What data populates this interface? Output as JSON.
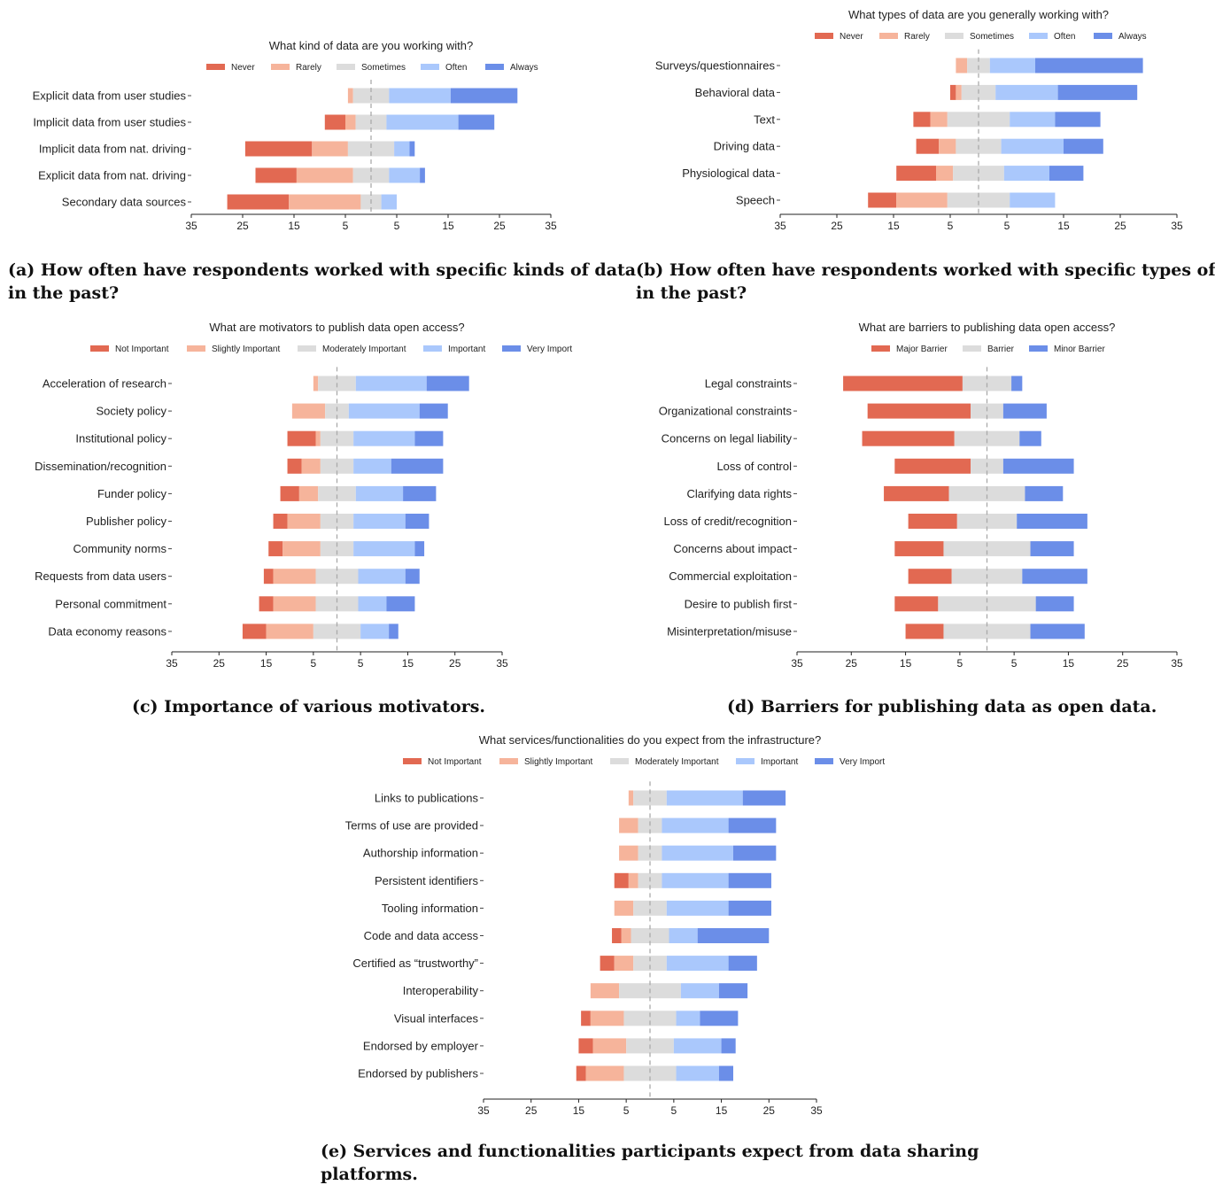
{
  "chart_data": [
    {
      "type": "bar",
      "title": "What kind of data are you working with?",
      "caption": [
        "(a) How often have respondents worked with specific kinds of data",
        "in the past?"
      ],
      "legend": [
        "Never",
        "Rarely",
        "Sometimes",
        "Often",
        "Always"
      ],
      "colors": [
        "#e26952",
        "#f6b49b",
        "#dcdcdc",
        "#aac8fc",
        "#6b8ee8"
      ],
      "categories": [
        "Explicit data from user studies",
        "Implicit data from user studies",
        "Implicit data from nat. driving",
        "Explicit data from nat. driving",
        "Secondary data sources"
      ],
      "series": [
        {
          "name": "Never",
          "values": [
            0,
            4,
            13,
            8,
            12
          ]
        },
        {
          "name": "Rarely",
          "values": [
            1,
            2,
            7,
            11,
            14
          ]
        },
        {
          "name": "Sometimes",
          "values": [
            7,
            6,
            9,
            7,
            4
          ]
        },
        {
          "name": "Often",
          "values": [
            12,
            14,
            3,
            6,
            3
          ]
        },
        {
          "name": "Always",
          "values": [
            13,
            7,
            1,
            1,
            0
          ]
        }
      ],
      "xticks": [
        "35",
        "25",
        "15",
        "5",
        "5",
        "15",
        "25",
        "35"
      ],
      "xlim": [
        -35,
        35
      ]
    },
    {
      "type": "bar",
      "title": "What types of data are you generally working with?",
      "caption": [
        "(b) How often have respondents worked with specific types of data",
        "in the past?"
      ],
      "legend": [
        "Never",
        "Rarely",
        "Sometimes",
        "Often",
        "Always"
      ],
      "colors": [
        "#e26952",
        "#f6b49b",
        "#dcdcdc",
        "#aac8fc",
        "#6b8ee8"
      ],
      "categories": [
        "Surveys/questionnaires",
        "Behavioral data",
        "Text",
        "Driving data",
        "Physiological data",
        "Speech"
      ],
      "series": [
        {
          "name": "Never",
          "values": [
            0,
            1,
            3,
            4,
            7,
            5
          ]
        },
        {
          "name": "Rarely",
          "values": [
            2,
            1,
            3,
            3,
            3,
            9
          ]
        },
        {
          "name": "Sometimes",
          "values": [
            4,
            6,
            11,
            8,
            9,
            11
          ]
        },
        {
          "name": "Often",
          "values": [
            8,
            11,
            8,
            11,
            8,
            8
          ]
        },
        {
          "name": "Always",
          "values": [
            19,
            14,
            8,
            7,
            6,
            0
          ]
        }
      ],
      "xticks": [
        "35",
        "25",
        "15",
        "5",
        "5",
        "15",
        "25",
        "35"
      ],
      "xlim": [
        -35,
        35
      ]
    },
    {
      "type": "bar",
      "title": "What are motivators to publish data open access?",
      "caption": [
        "(c) Importance of various motivators."
      ],
      "legend": [
        "Not Important",
        "Slightly Important",
        "Moderately Important",
        "Important",
        "Very Import"
      ],
      "colors": [
        "#e26952",
        "#f6b49b",
        "#dcdcdc",
        "#aac8fc",
        "#6b8ee8"
      ],
      "categories": [
        "Acceleration of research",
        "Society policy",
        "Institutional policy",
        "Dissemination/recognition",
        "Funder policy",
        "Publisher policy",
        "Community norms",
        "Requests from data users",
        "Personal commitment",
        "Data economy reasons"
      ],
      "series": [
        {
          "name": "Not Important",
          "values": [
            0,
            0,
            6,
            3,
            4,
            3,
            3,
            2,
            3,
            5
          ]
        },
        {
          "name": "Slightly Important",
          "values": [
            1,
            7,
            1,
            4,
            4,
            7,
            8,
            9,
            9,
            10
          ]
        },
        {
          "name": "Moderately Important",
          "values": [
            8,
            5,
            7,
            7,
            8,
            7,
            7,
            9,
            9,
            10
          ]
        },
        {
          "name": "Important",
          "values": [
            15,
            15,
            13,
            8,
            10,
            11,
            13,
            10,
            6,
            6
          ]
        },
        {
          "name": "Very Import",
          "values": [
            9,
            6,
            6,
            11,
            7,
            5,
            2,
            3,
            6,
            2
          ]
        }
      ],
      "xticks": [
        "35",
        "25",
        "15",
        "5",
        "5",
        "15",
        "25",
        "35"
      ],
      "xlim": [
        -35,
        35
      ]
    },
    {
      "type": "bar",
      "title": "What are barriers to publishing data open access?",
      "caption": [
        "(d) Barriers for publishing data as open data."
      ],
      "legend": [
        "Major Barrier",
        "Barrier",
        "Minor Barrier"
      ],
      "colors": [
        "#e26952",
        "#dcdcdc",
        "#6b8ee8"
      ],
      "categories": [
        "Legal constraints",
        "Organizational constraints",
        "Concerns on legal liability",
        "Loss of control",
        "Clarifying data rights",
        "Loss of credit/recognition",
        "Concerns about impact",
        "Commercial exploitation",
        "Desire to publish first",
        "Misinterpretation/misuse"
      ],
      "series": [
        {
          "name": "Major Barrier",
          "values": [
            22,
            19,
            17,
            14,
            12,
            9,
            9,
            8,
            8,
            7
          ]
        },
        {
          "name": "Barrier",
          "values": [
            9,
            6,
            12,
            6,
            14,
            11,
            16,
            13,
            18,
            16
          ]
        },
        {
          "name": "Minor Barrier",
          "values": [
            2,
            8,
            4,
            13,
            7,
            13,
            8,
            12,
            7,
            10
          ]
        }
      ],
      "xticks": [
        "35",
        "25",
        "15",
        "5",
        "5",
        "15",
        "25",
        "35"
      ],
      "xlim": [
        -35,
        35
      ]
    },
    {
      "type": "bar",
      "title": "What services/functionalities do you expect from the infrastructure?",
      "caption": [
        "(e) Services and functionalities participants expect from data sharing",
        "platforms."
      ],
      "legend": [
        "Not Important",
        "Slightly Important",
        "Moderately Important",
        "Important",
        "Very Import"
      ],
      "colors": [
        "#e26952",
        "#f6b49b",
        "#dcdcdc",
        "#aac8fc",
        "#6b8ee8"
      ],
      "categories": [
        "Links to publications",
        "Terms of use are provided",
        "Authorship information",
        "Persistent identifiers",
        "Tooling information",
        "Code and data access",
        "Certified as “trustworthy”",
        "Interoperability",
        "Visual interfaces",
        "Endorsed by employer",
        "Endorsed by publishers"
      ],
      "series": [
        {
          "name": "Not Important",
          "values": [
            0,
            0,
            0,
            3,
            0,
            2,
            3,
            0,
            2,
            3,
            2
          ]
        },
        {
          "name": "Slightly Important",
          "values": [
            1,
            4,
            4,
            2,
            4,
            2,
            4,
            6,
            7,
            7,
            8
          ]
        },
        {
          "name": "Moderately Important",
          "values": [
            7,
            5,
            5,
            5,
            7,
            8,
            7,
            13,
            11,
            10,
            11
          ]
        },
        {
          "name": "Important",
          "values": [
            16,
            14,
            15,
            14,
            13,
            6,
            13,
            8,
            5,
            10,
            9
          ]
        },
        {
          "name": "Very Import",
          "values": [
            9,
            10,
            9,
            9,
            9,
            15,
            6,
            6,
            8,
            3,
            3
          ]
        }
      ],
      "xticks": [
        "35",
        "25",
        "15",
        "5",
        "5",
        "15",
        "25",
        "35"
      ],
      "xlim": [
        -35,
        35
      ]
    }
  ]
}
